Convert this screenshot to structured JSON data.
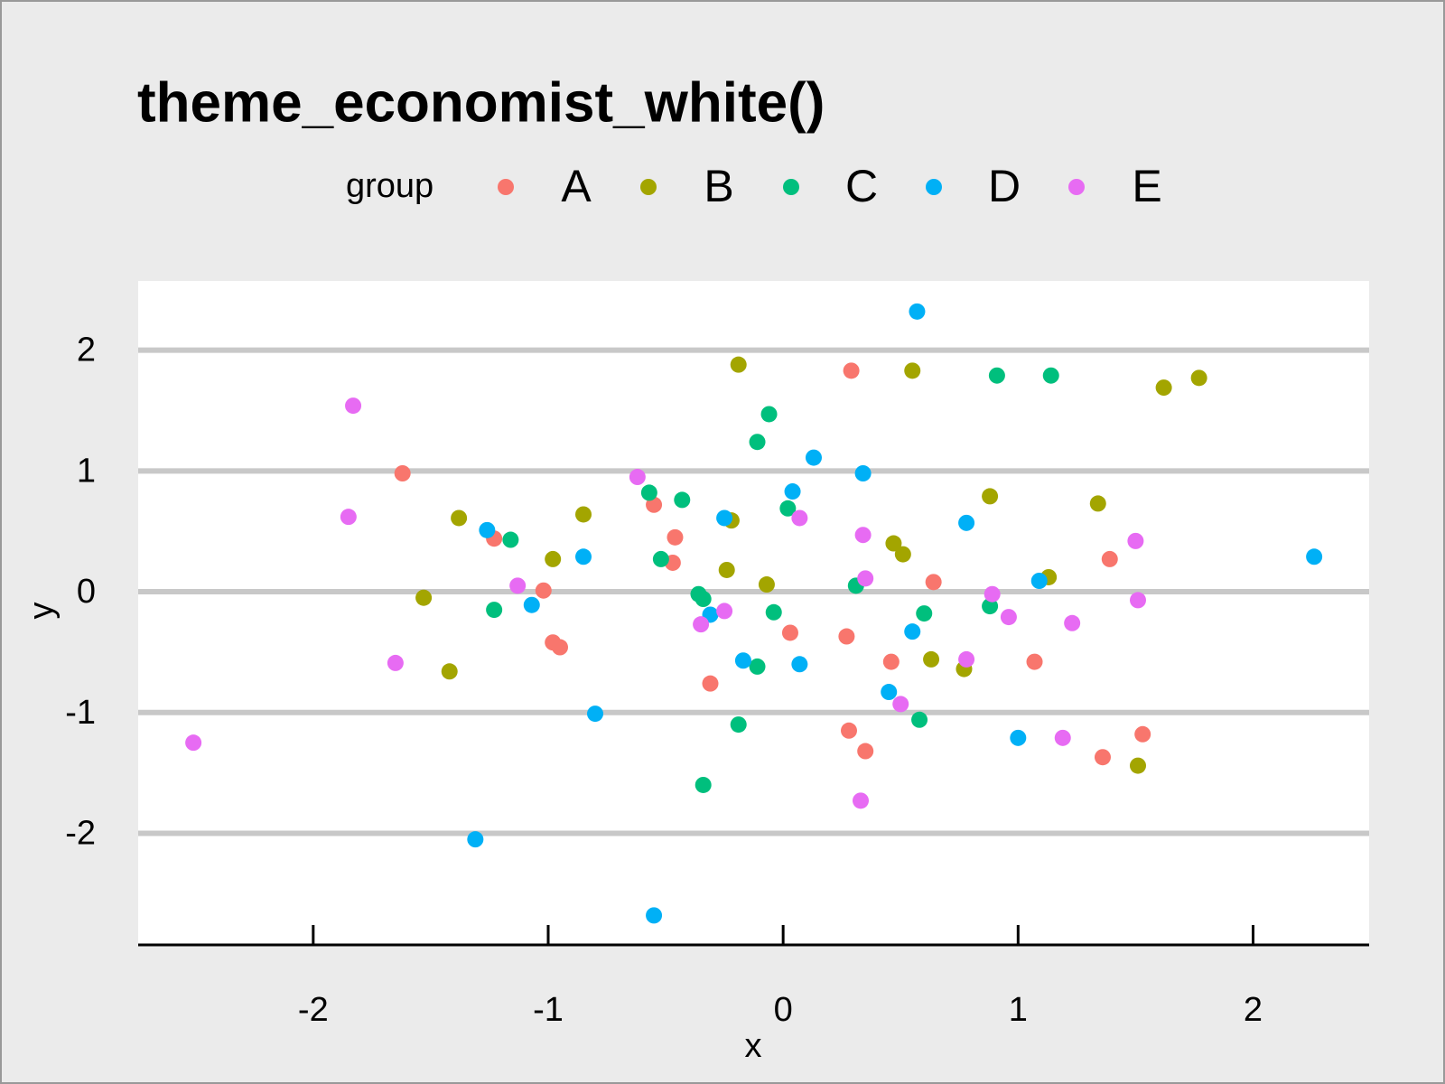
{
  "chart_data": {
    "type": "scatter",
    "title": "theme_economist_white()",
    "x_label": "x",
    "y_label": "y",
    "legend_title": "group",
    "legend_position": "top",
    "grid": "y",
    "xlim": [
      -2.745,
      2.494
    ],
    "ylim": [
      -2.924,
      2.573
    ],
    "xticks": [
      -2,
      -1,
      0,
      1,
      2
    ],
    "yticks": [
      -2,
      -1,
      0,
      1,
      2
    ],
    "series": [
      {
        "name": "A",
        "color": "#F8766D",
        "x": [
          0.29,
          -1.62,
          -0.55,
          -0.46,
          -1.23,
          -0.47,
          -1.02,
          0.64,
          1.39,
          -0.98,
          -0.95,
          0.03,
          0.27,
          0.46,
          1.07,
          -0.31,
          0.28,
          0.35,
          1.36,
          1.53
        ],
        "values": [
          1.83,
          0.98,
          0.72,
          0.45,
          0.44,
          0.24,
          0.01,
          0.08,
          0.27,
          -0.42,
          -0.46,
          -0.34,
          -0.37,
          -0.58,
          -0.58,
          -0.76,
          -1.15,
          -1.32,
          -1.37,
          -1.18
        ]
      },
      {
        "name": "B",
        "color": "#A3A500",
        "x": [
          -0.19,
          0.55,
          1.62,
          1.77,
          0.88,
          1.34,
          -1.38,
          -0.85,
          -0.22,
          0.47,
          0.51,
          -0.98,
          -0.24,
          -0.07,
          1.13,
          -1.53,
          -1.42,
          0.63,
          0.77,
          1.51
        ],
        "values": [
          1.88,
          1.83,
          1.69,
          1.77,
          0.79,
          0.73,
          0.61,
          0.64,
          0.59,
          0.4,
          0.31,
          0.27,
          0.18,
          0.06,
          0.12,
          -0.05,
          -0.66,
          -0.56,
          -0.64,
          -1.44
        ]
      },
      {
        "name": "C",
        "color": "#00BF7D",
        "x": [
          0.91,
          1.14,
          -0.06,
          -0.11,
          -0.57,
          -0.43,
          0.02,
          -1.16,
          -0.52,
          0.31,
          -0.36,
          -0.34,
          -1.23,
          -0.04,
          0.6,
          0.88,
          -0.11,
          0.58,
          -0.19,
          -0.34
        ],
        "values": [
          1.79,
          1.79,
          1.47,
          1.24,
          0.82,
          0.76,
          0.69,
          0.43,
          0.27,
          0.05,
          -0.02,
          -0.06,
          -0.15,
          -0.17,
          -0.18,
          -0.12,
          -0.62,
          -1.06,
          -1.1,
          -1.6
        ]
      },
      {
        "name": "D",
        "color": "#00B0F6",
        "x": [
          0.57,
          0.13,
          0.34,
          0.04,
          -0.25,
          0.78,
          -1.26,
          -0.85,
          2.26,
          1.09,
          -1.07,
          -0.31,
          0.55,
          -0.17,
          0.07,
          0.45,
          -0.8,
          1.0,
          -1.31,
          -0.55
        ],
        "values": [
          2.32,
          1.11,
          0.98,
          0.83,
          0.61,
          0.57,
          0.51,
          0.29,
          0.29,
          0.09,
          -0.11,
          -0.19,
          -0.33,
          -0.57,
          -0.6,
          -0.83,
          -1.01,
          -1.21,
          -2.05,
          -2.68
        ]
      },
      {
        "name": "E",
        "color": "#E76BF3",
        "x": [
          -1.83,
          -0.62,
          -1.85,
          0.07,
          0.34,
          1.5,
          0.35,
          -1.13,
          0.89,
          -0.25,
          0.96,
          1.51,
          -0.35,
          1.23,
          -1.65,
          0.78,
          0.5,
          1.19,
          0.33,
          -2.51
        ],
        "values": [
          1.54,
          0.95,
          0.62,
          0.61,
          0.47,
          0.42,
          0.11,
          0.05,
          -0.02,
          -0.16,
          -0.21,
          -0.07,
          -0.27,
          -0.26,
          -0.59,
          -0.56,
          -0.93,
          -1.21,
          -1.73,
          -1.25
        ]
      }
    ]
  }
}
